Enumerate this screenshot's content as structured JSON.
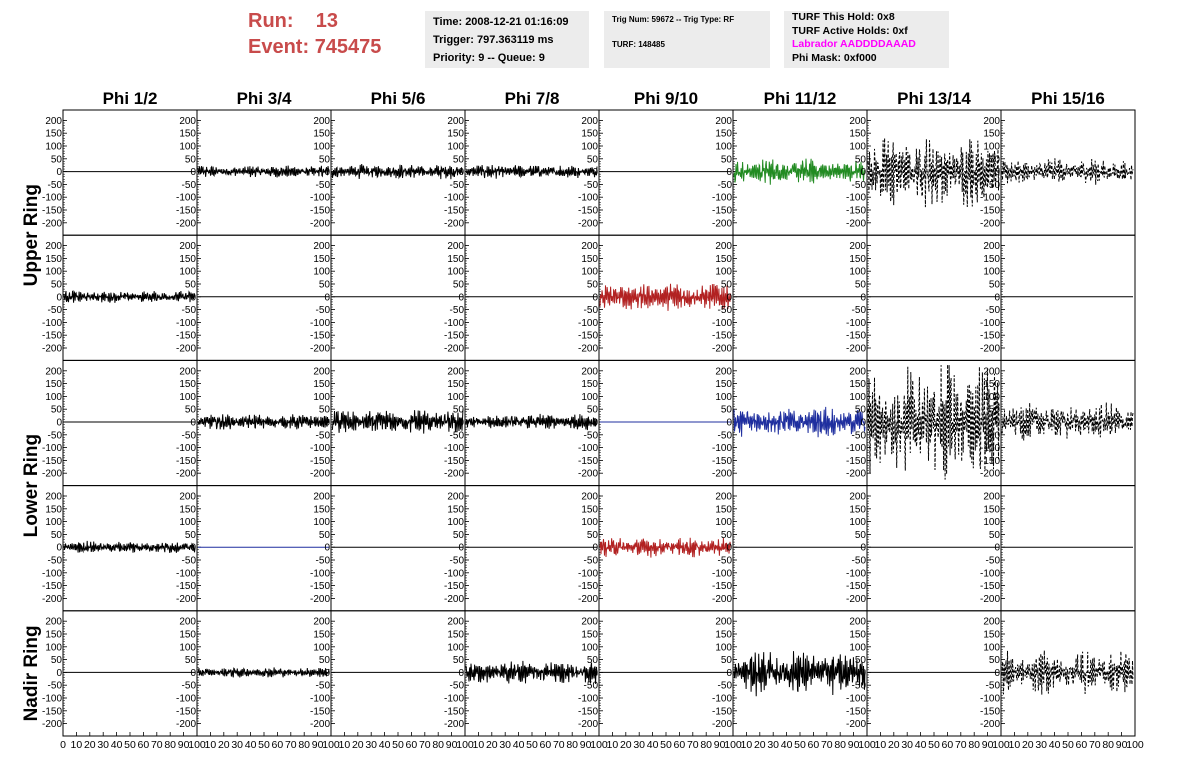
{
  "header": {
    "run_label": "Run:",
    "run_value": "13",
    "event_label": "Event:",
    "event_value": "745475",
    "time": "Time: 2008-12-21 01:16:09",
    "trigger": "Trigger: 797.363119 ms",
    "priority": "Priority: 9 -- Queue: 9",
    "trig_num": "Trig Num: 59672 -- Trig Type: RF",
    "turf": "TURF: 148485",
    "turf_hold": "TURF This Hold: 0x8",
    "turf_active": "TURF Active Holds: 0xf",
    "labrador": "Labrador AADDDDAAAD",
    "phi_mask": "Phi Mask: 0xf000"
  },
  "colors": {
    "title_red": "#c84b4b",
    "labrador": "#ff00ff",
    "info_bg": "#ececec",
    "trace_black": "#000000",
    "trace_green": "#228b22",
    "trace_red": "#b22222",
    "trace_blue": "#1f2f9f"
  },
  "chart_data": {
    "type": "line",
    "columns": [
      "Phi 1/2",
      "Phi 3/4",
      "Phi 5/6",
      "Phi 7/8",
      "Phi 9/10",
      "Phi 11/12",
      "Phi 13/14",
      "Phi 15/16"
    ],
    "rows": [
      "Upper Ring",
      "Upper Ring",
      "Lower Ring",
      "Lower Ring",
      "Nadir Ring"
    ],
    "row_labels": [
      {
        "text": "Upper Ring",
        "rows": [
          0,
          1
        ]
      },
      {
        "text": "Lower Ring",
        "rows": [
          2,
          3
        ]
      },
      {
        "text": "Nadir Ring",
        "rows": [
          4
        ]
      }
    ],
    "ylim": [
      -225,
      225
    ],
    "yticks": [
      200,
      150,
      100,
      50,
      0,
      -50,
      -100,
      -150,
      -200
    ],
    "xlim": [
      0,
      100
    ],
    "xtick_labels": [
      "0",
      "10",
      "20",
      "30",
      "40",
      "50",
      "60",
      "70",
      "80",
      "90",
      "100"
    ],
    "panels": [
      [
        {
          "style": "flat",
          "color": "#000000",
          "amp": 0
        },
        {
          "style": "solid",
          "color": "#000000",
          "amp": 22
        },
        {
          "style": "solid",
          "color": "#000000",
          "amp": 26
        },
        {
          "style": "solid",
          "color": "#000000",
          "amp": 26
        },
        {
          "style": "flat",
          "color": "#000000",
          "amp": 0
        },
        {
          "style": "solid",
          "color": "#228b22",
          "amp": 45
        },
        {
          "style": "dashed",
          "color": "#000000",
          "amp": 125
        },
        {
          "style": "dashed",
          "color": "#000000",
          "amp": 45
        }
      ],
      [
        {
          "style": "solid",
          "color": "#000000",
          "amp": 22
        },
        {
          "style": "flat",
          "color": "#000000",
          "amp": 0
        },
        {
          "style": "flat",
          "color": "#000000",
          "amp": 0
        },
        {
          "style": "flat",
          "color": "#000000",
          "amp": 0
        },
        {
          "style": "solid",
          "color": "#b22222",
          "amp": 50
        },
        {
          "style": "flat",
          "color": "#000000",
          "amp": 0
        },
        {
          "style": "flat",
          "color": "#000000",
          "amp": 0
        },
        {
          "style": "flat",
          "color": "#000000",
          "amp": 0
        }
      ],
      [
        {
          "style": "flat",
          "color": "#000000",
          "amp": 0
        },
        {
          "style": "solid",
          "color": "#000000",
          "amp": 28
        },
        {
          "style": "solid",
          "color": "#000000",
          "amp": 45
        },
        {
          "style": "solid",
          "color": "#000000",
          "amp": 28
        },
        {
          "style": "flat",
          "color": "#1f2f9f",
          "amp": 0
        },
        {
          "style": "solid",
          "color": "#1f2f9f",
          "amp": 55
        },
        {
          "style": "dashed",
          "color": "#000000",
          "amp": 210
        },
        {
          "style": "dashed",
          "color": "#000000",
          "amp": 65
        }
      ],
      [
        {
          "style": "solid",
          "color": "#000000",
          "amp": 22
        },
        {
          "style": "flat",
          "color": "#1f2f9f",
          "amp": 0
        },
        {
          "style": "flat",
          "color": "#000000",
          "amp": 0
        },
        {
          "style": "flat",
          "color": "#000000",
          "amp": 0
        },
        {
          "style": "solid",
          "color": "#b22222",
          "amp": 35
        },
        {
          "style": "flat",
          "color": "#000000",
          "amp": 0
        },
        {
          "style": "flat",
          "color": "#000000",
          "amp": 0
        },
        {
          "style": "flat",
          "color": "#000000",
          "amp": 0
        }
      ],
      [
        {
          "style": "flat",
          "color": "#000000",
          "amp": 0
        },
        {
          "style": "solid",
          "color": "#000000",
          "amp": 18
        },
        {
          "style": "flat",
          "color": "#000000",
          "amp": 0
        },
        {
          "style": "solid",
          "color": "#000000",
          "amp": 40
        },
        {
          "style": "flat",
          "color": "#000000",
          "amp": 0
        },
        {
          "style": "solid",
          "color": "#000000",
          "amp": 80
        },
        {
          "style": "flat",
          "color": "#000000",
          "amp": 0
        },
        {
          "style": "dashed",
          "color": "#000000",
          "amp": 75
        }
      ]
    ]
  }
}
